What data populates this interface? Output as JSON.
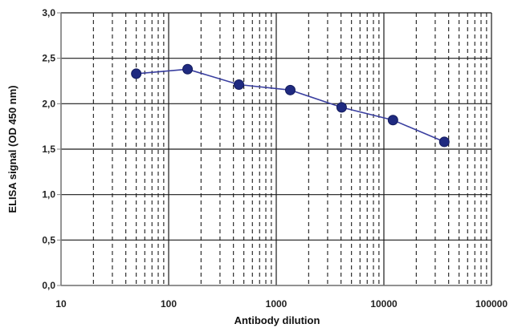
{
  "chart_data": {
    "type": "scatter",
    "xlabel": "Antibody dilution",
    "ylabel": "ELISA signal (OD 450 nm)",
    "x_scale": "log",
    "xlim": [
      10,
      100000
    ],
    "ylim": [
      0,
      3
    ],
    "x_ticks": [
      10,
      100,
      1000,
      10000,
      100000
    ],
    "x_tick_labels": [
      "10",
      "100",
      "1000",
      "10000",
      "100000"
    ],
    "y_ticks": [
      0,
      0.5,
      1,
      1.5,
      2,
      2.5,
      3
    ],
    "y_tick_labels": [
      "0,0",
      "0,5",
      "1,0",
      "1,5",
      "2,0",
      "2,5",
      "3,0"
    ],
    "grid": true,
    "connected": true,
    "series": [
      {
        "x": [
          50,
          150,
          450,
          1350,
          4050,
          12150,
          36450
        ],
        "y": [
          2.33,
          2.38,
          2.21,
          2.15,
          1.96,
          1.82,
          1.58
        ]
      }
    ],
    "colors": {
      "line": "#3a3fa0",
      "marker": "#1f2a80",
      "major_grid": "#1a1a1a",
      "minor_grid": "#1a1a1a",
      "axis": "#808080"
    }
  }
}
